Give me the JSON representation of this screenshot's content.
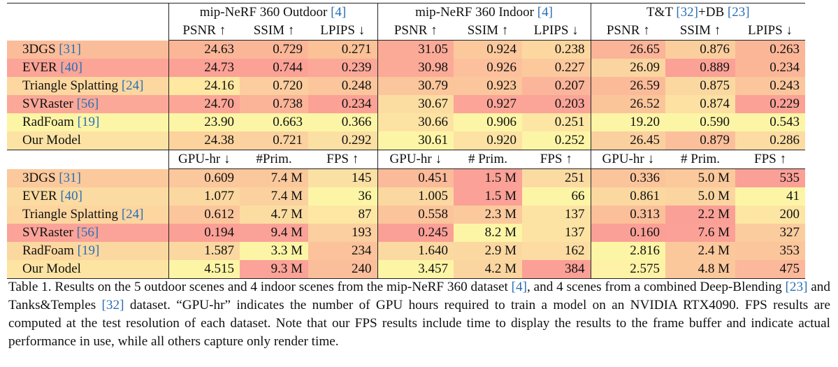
{
  "table": {
    "groups": [
      {
        "name": "mip-NeRF 360 Outdoor ",
        "ref": "[4]"
      },
      {
        "name": "mip-NeRF 360 Indoor ",
        "ref": "[4]"
      },
      {
        "name": "T&T ",
        "ref": "[32]",
        "name2": "+DB ",
        "ref2": "[23]"
      }
    ],
    "quality_metrics": [
      "PSNR ↑",
      "SSIM ↑",
      "LPIPS ↓",
      "PSNR ↑",
      "SSIM ↑",
      "LPIPS ↓",
      "PSNR ↑",
      "SSIM ↑",
      "LPIPS ↓"
    ],
    "perf_metrics": [
      "GPU-hr ↓",
      "#Prim.",
      "FPS ↑",
      "GPU-hr ↓",
      "# Prim.",
      "FPS ↑",
      "GPU-hr ↓",
      "# Prim.",
      "FPS ↑"
    ],
    "quality_rows": [
      {
        "method": "3DGS ",
        "ref": "[31]",
        "values": [
          "24.63",
          "0.729",
          "0.271",
          "31.05",
          "0.924",
          "0.238",
          "26.65",
          "0.876",
          "0.263"
        ]
      },
      {
        "method": "EVER ",
        "ref": "[40]",
        "values": [
          "24.73",
          "0.744",
          "0.239",
          "30.98",
          "0.926",
          "0.227",
          "26.09",
          "0.889",
          "0.234"
        ]
      },
      {
        "method": "Triangle Splatting ",
        "ref": "[24]",
        "values": [
          "24.16",
          "0.720",
          "0.248",
          "30.79",
          "0.923",
          "0.207",
          "26.59",
          "0.875",
          "0.243"
        ]
      },
      {
        "method": "SVRaster ",
        "ref": "[56]",
        "values": [
          "24.70",
          "0.738",
          "0.234",
          "30.67",
          "0.927",
          "0.203",
          "26.52",
          "0.874",
          "0.229"
        ]
      },
      {
        "method": "RadFoam ",
        "ref": "[19]",
        "values": [
          "23.90",
          "0.663",
          "0.366",
          "30.66",
          "0.906",
          "0.251",
          "19.20",
          "0.590",
          "0.543"
        ]
      },
      {
        "method": "Our Model",
        "ref": "",
        "values": [
          "24.38",
          "0.721",
          "0.292",
          "30.61",
          "0.920",
          "0.252",
          "26.45",
          "0.879",
          "0.286"
        ]
      }
    ],
    "perf_rows": [
      {
        "method": "3DGS ",
        "ref": "[31]",
        "values": [
          "0.609",
          "7.4 M",
          "145",
          "0.451",
          "1.5 M",
          "251",
          "0.336",
          "5.0 M",
          "535"
        ]
      },
      {
        "method": "EVER ",
        "ref": "[40]",
        "values": [
          "1.077",
          "7.4 M",
          "36",
          "1.005",
          "1.5 M",
          "66",
          "0.861",
          "5.0 M",
          "41"
        ]
      },
      {
        "method": "Triangle Splatting ",
        "ref": "[24]",
        "values": [
          "0.612",
          "4.7 M",
          "87",
          "0.558",
          "2.3 M",
          "137",
          "0.313",
          "2.2 M",
          "200"
        ]
      },
      {
        "method": "SVRaster ",
        "ref": "[56]",
        "values": [
          "0.194",
          "9.4 M",
          "193",
          "0.245",
          "8.2 M",
          "137",
          "0.160",
          "7.6 M",
          "327"
        ]
      },
      {
        "method": "RadFoam ",
        "ref": "[19]",
        "values": [
          "1.587",
          "3.3 M",
          "234",
          "1.640",
          "2.9 M",
          "162",
          "2.816",
          "2.4 M",
          "353"
        ]
      },
      {
        "method": "Our Model",
        "ref": "",
        "values": [
          "4.515",
          "9.3 M",
          "240",
          "3.457",
          "4.2 M",
          "384",
          "2.575",
          "4.8 M",
          "475"
        ]
      }
    ],
    "quality_colors": [
      [
        "#fbb697",
        "#fbb697",
        "#fbc197",
        "#fcaa98",
        "#fcc99d",
        "#fdd7a0",
        "#fbb498",
        "#fbce9e",
        "#fbb697"
      ],
      [
        "#fba196",
        "#fba196",
        "#fba898",
        "#fcaa98",
        "#fcc09d",
        "#fcc99d",
        "#fbd59f",
        "#fba196",
        "#fbb698"
      ],
      [
        "#fee8a2",
        "#fbcd9f",
        "#fbc69c",
        "#fbc69c",
        "#fcc69c",
        "#fbb59a",
        "#fbbb99",
        "#fbd8a0",
        "#fbc69c"
      ],
      [
        "#fca697",
        "#fbb498",
        "#fba196",
        "#fbdda2",
        "#fba497",
        "#fba498",
        "#fbc59a",
        "#fce1a2",
        "#fba196"
      ],
      [
        "#fdf5a6",
        "#fdf5a6",
        "#fdf5a6",
        "#fde3a3",
        "#fdf5a6",
        "#fde6a4",
        "#fdf5a6",
        "#fdf5a6",
        "#fdf5a6"
      ],
      [
        "#fcd39d",
        "#fbd29f",
        "#fbe0a3",
        "#fdf5a6",
        "#fde2a3",
        "#fdf5a6",
        "#fbd09f",
        "#fbc09b",
        "#fcdca3"
      ]
    ],
    "perf_colors": [
      [
        "#fbc79c",
        "#fbc89c",
        "#fbe0a3",
        "#fbba99",
        "#fba197",
        "#fbdba2",
        "#fbc49b",
        "#fbc99c",
        "#fba096"
      ],
      [
        "#fbd8a0",
        "#fbd29f",
        "#fdf5a6",
        "#fbd8a0",
        "#fba197",
        "#fdf5a6",
        "#fbd8a0",
        "#fbd5a0",
        "#fdf5a6"
      ],
      [
        "#fcc69c",
        "#fbdda2",
        "#fde7a3",
        "#fbc49b",
        "#fcc99d",
        "#fce3a3",
        "#fbbf9a",
        "#fba096",
        "#fde6a3"
      ],
      [
        "#fba096",
        "#fba298",
        "#fbcf9f",
        "#fba096",
        "#fdf5a6",
        "#fce3a3",
        "#fba096",
        "#fba197",
        "#fbcc9d"
      ],
      [
        "#fbd8a0",
        "#fdf5a6",
        "#fbc29b",
        "#fbdaa1",
        "#fbd8a0",
        "#fcdca2",
        "#fdf5a6",
        "#fbc89c",
        "#fbc69c"
      ],
      [
        "#fdf5a6",
        "#fba398",
        "#fbbe9b",
        "#fdf5a6",
        "#fbd59f",
        "#fba096",
        "#fdf2a6",
        "#fbc89c",
        "#fbb89a"
      ]
    ],
    "name_colors": {
      "quality": [
        "#fbbc9a",
        "#fba497",
        "#fcd79f",
        "#fba898",
        "#fdf5a6",
        "#fce3a3"
      ],
      "perf": [
        "#fbc99c",
        "#fbdba1",
        "#fcd59f",
        "#fba398",
        "#fbd89f",
        "#fde4a3"
      ]
    }
  },
  "caption": {
    "p1": "Table 1. Results on the 5 outdoor scenes and 4 indoor scenes from the mip-NeRF 360 dataset ",
    "r1": "[4]",
    "p2": ", and 4 scenes from a combined Deep-Blending ",
    "r2": "[23]",
    "p3": " and Tanks&Temples ",
    "r3": "[32]",
    "p4": " dataset. “GPU-hr” indicates the number of GPU hours required to train a model on an NVIDIA RTX4090. FPS results are computed at the test resolution of each dataset. Note that our FPS results include time to display the results to the frame buffer and indicate actual performance in use, while all others capture only render time."
  }
}
